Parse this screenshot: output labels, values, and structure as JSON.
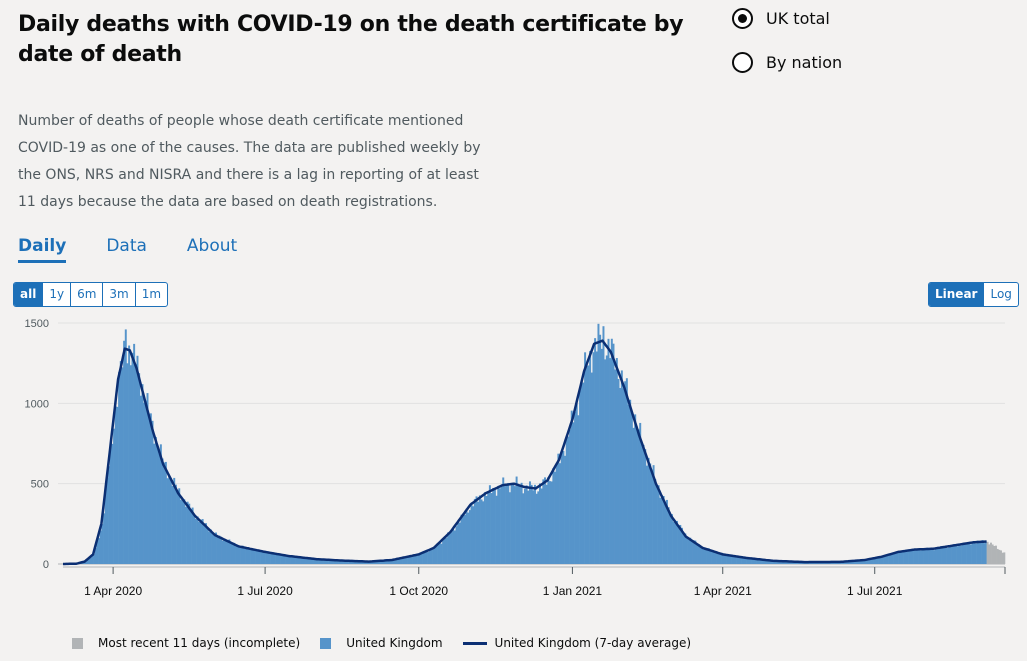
{
  "title": "Daily deaths with COVID-19 on the death certificate by date of death",
  "radios": [
    {
      "label": "UK total",
      "checked": true
    },
    {
      "label": "By nation",
      "checked": false
    }
  ],
  "description": "Number of deaths of people whose death certificate mentioned COVID-19 as one of the causes. The data are published weekly by the ONS, NRS and NISRA and there is a lag in reporting of at least 11 days because the data are based on death registrations.",
  "tabs": [
    "Daily",
    "Data",
    "About"
  ],
  "range_buttons": [
    "all",
    "1y",
    "6m",
    "3m",
    "1m"
  ],
  "scale_buttons": [
    "Linear",
    "Log"
  ],
  "colors": {
    "bars": "#5694ca",
    "incomplete": "#b1b4b6",
    "line": "#0b2f73",
    "accent": "#1d70b8"
  },
  "legend": {
    "incomplete": "Most recent 11 days (incomplete)",
    "daily": "United Kingdom",
    "average": "United Kingdom (7-day average)"
  },
  "chart_data": {
    "type": "bar",
    "x_start": "2020-03-02",
    "x_end": "2021-09-17",
    "incomplete_days": 11,
    "ylim": [
      0,
      1500
    ],
    "yticks": [
      "1500",
      "1000",
      "500",
      "0"
    ],
    "xticks": [
      {
        "date": "2020-04-01",
        "label": "1 Apr 2020"
      },
      {
        "date": "2020-07-01",
        "label": "1 Jul 2020"
      },
      {
        "date": "2020-10-01",
        "label": "1 Oct 2020"
      },
      {
        "date": "2021-01-01",
        "label": "1 Jan 2021"
      },
      {
        "date": "2021-04-01",
        "label": "1 Apr 2021"
      },
      {
        "date": "2021-07-01",
        "label": "1 Jul 2021"
      }
    ],
    "series": [
      {
        "name": "United Kingdom (7-day average)",
        "points": [
          [
            "2020-03-02",
            0
          ],
          [
            "2020-03-10",
            2
          ],
          [
            "2020-03-15",
            15
          ],
          [
            "2020-03-20",
            60
          ],
          [
            "2020-03-25",
            250
          ],
          [
            "2020-03-30",
            700
          ],
          [
            "2020-04-04",
            1150
          ],
          [
            "2020-04-08",
            1340
          ],
          [
            "2020-04-11",
            1330
          ],
          [
            "2020-04-15",
            1220
          ],
          [
            "2020-04-20",
            1020
          ],
          [
            "2020-04-25",
            820
          ],
          [
            "2020-05-01",
            620
          ],
          [
            "2020-05-10",
            440
          ],
          [
            "2020-05-20",
            300
          ],
          [
            "2020-06-01",
            180
          ],
          [
            "2020-06-15",
            110
          ],
          [
            "2020-07-01",
            75
          ],
          [
            "2020-07-15",
            50
          ],
          [
            "2020-08-01",
            30
          ],
          [
            "2020-08-15",
            22
          ],
          [
            "2020-09-01",
            15
          ],
          [
            "2020-09-15",
            25
          ],
          [
            "2020-10-01",
            60
          ],
          [
            "2020-10-10",
            100
          ],
          [
            "2020-10-20",
            200
          ],
          [
            "2020-11-01",
            370
          ],
          [
            "2020-11-10",
            440
          ],
          [
            "2020-11-20",
            490
          ],
          [
            "2020-11-27",
            500
          ],
          [
            "2020-12-03",
            480
          ],
          [
            "2020-12-10",
            470
          ],
          [
            "2020-12-17",
            520
          ],
          [
            "2020-12-24",
            650
          ],
          [
            "2021-01-01",
            900
          ],
          [
            "2021-01-08",
            1200
          ],
          [
            "2021-01-14",
            1370
          ],
          [
            "2021-01-19",
            1390
          ],
          [
            "2021-01-24",
            1320
          ],
          [
            "2021-02-01",
            1100
          ],
          [
            "2021-02-10",
            800
          ],
          [
            "2021-02-20",
            500
          ],
          [
            "2021-03-01",
            300
          ],
          [
            "2021-03-10",
            170
          ],
          [
            "2021-03-20",
            100
          ],
          [
            "2021-04-01",
            60
          ],
          [
            "2021-04-15",
            38
          ],
          [
            "2021-05-01",
            20
          ],
          [
            "2021-05-20",
            12
          ],
          [
            "2021-06-10",
            13
          ],
          [
            "2021-06-25",
            25
          ],
          [
            "2021-07-05",
            45
          ],
          [
            "2021-07-15",
            75
          ],
          [
            "2021-07-25",
            90
          ],
          [
            "2021-08-05",
            95
          ],
          [
            "2021-08-20",
            120
          ],
          [
            "2021-08-29",
            135
          ],
          [
            "2021-09-06",
            140
          ]
        ]
      }
    ],
    "daily_spikes": [
      {
        "date": "2020-04-08",
        "value": 1460
      },
      {
        "date": "2021-01-19",
        "value": 1480
      }
    ]
  }
}
